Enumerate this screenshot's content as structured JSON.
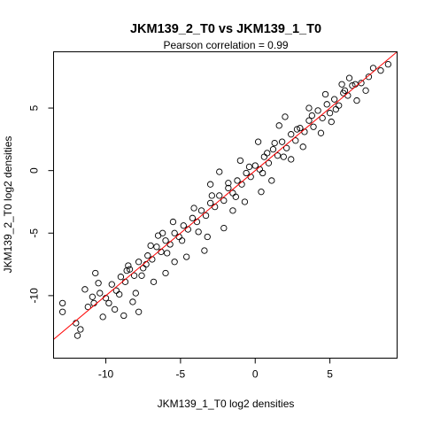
{
  "chart_data": {
    "type": "scatter",
    "title": "JKM139_2_T0 vs JKM139_1_T0",
    "subtitle": "Pearson correlation =  0.99",
    "xlabel": "JKM139_1_T0 log2 densities",
    "ylabel": "JKM139_2_T0 log2 densities",
    "xlim": [
      -13.5,
      9.5
    ],
    "ylim": [
      -15,
      9.5
    ],
    "xticks": [
      -10,
      -5,
      0,
      5
    ],
    "yticks": [
      -10,
      -5,
      0,
      5
    ],
    "xtick_labels": [
      "-10",
      "-5",
      "0",
      "5"
    ],
    "ytick_labels": [
      "-10",
      "-5",
      "0",
      "5"
    ],
    "grid": false,
    "legend": "none",
    "marker": "open-circle",
    "fit_line": {
      "slope": 1.0,
      "intercept": 0.0,
      "color": "#ff0000"
    },
    "point_color": "#000000",
    "series": [
      {
        "values": [
          [
            8.4,
            8.0
          ],
          [
            8.9,
            8.5
          ],
          [
            7.6,
            7.5
          ],
          [
            7.1,
            7.0
          ],
          [
            6.7,
            6.9
          ],
          [
            6.5,
            6.8
          ],
          [
            6.2,
            6.0
          ],
          [
            5.9,
            6.2
          ],
          [
            5.6,
            5.2
          ],
          [
            5.3,
            5.7
          ],
          [
            5.0,
            4.6
          ],
          [
            4.8,
            5.3
          ],
          [
            4.5,
            4.2
          ],
          [
            4.2,
            4.8
          ],
          [
            3.9,
            3.5
          ],
          [
            3.6,
            4.0
          ],
          [
            3.3,
            3.1
          ],
          [
            3.0,
            3.4
          ],
          [
            2.7,
            2.4
          ],
          [
            2.4,
            2.9
          ],
          [
            2.1,
            1.8
          ],
          [
            1.8,
            2.3
          ],
          [
            1.5,
            1.2
          ],
          [
            1.2,
            1.7
          ],
          [
            0.9,
            0.6
          ],
          [
            0.6,
            1.1
          ],
          [
            0.3,
            0.1
          ],
          [
            0.0,
            0.4
          ],
          [
            -0.3,
            -0.5
          ],
          [
            -0.6,
            -0.2
          ],
          [
            -0.9,
            -1.1
          ],
          [
            -1.2,
            -0.8
          ],
          [
            -1.5,
            -1.8
          ],
          [
            -1.8,
            -1.4
          ],
          [
            -2.1,
            -2.4
          ],
          [
            -2.4,
            -2.0
          ],
          [
            -2.7,
            -2.9
          ],
          [
            -3.0,
            -2.6
          ],
          [
            -3.3,
            -3.6
          ],
          [
            -3.6,
            -3.2
          ],
          [
            -3.9,
            -4.1
          ],
          [
            -4.2,
            -3.8
          ],
          [
            -4.5,
            -4.7
          ],
          [
            -4.8,
            -4.4
          ],
          [
            -5.1,
            -5.3
          ],
          [
            -5.4,
            -5.0
          ],
          [
            -5.7,
            -5.9
          ],
          [
            -6.0,
            -5.6
          ],
          [
            -6.3,
            -6.5
          ],
          [
            -6.6,
            -6.1
          ],
          [
            -6.9,
            -7.1
          ],
          [
            -7.2,
            -6.8
          ],
          [
            -7.5,
            -7.8
          ],
          [
            -7.8,
            -7.3
          ],
          [
            -8.1,
            -8.4
          ],
          [
            -8.4,
            -7.9
          ],
          [
            -8.7,
            -8.9
          ],
          [
            -9.0,
            -8.5
          ],
          [
            -9.3,
            -9.6
          ],
          [
            -9.6,
            -9.1
          ],
          [
            -10.0,
            -10.2
          ],
          [
            -10.4,
            -9.8
          ],
          [
            -10.8,
            -10.6
          ],
          [
            -11.2,
            -10.9
          ],
          [
            -12.9,
            -10.6
          ],
          [
            -12.9,
            -11.3
          ],
          [
            -12.0,
            -12.2
          ],
          [
            -11.7,
            -12.7
          ],
          [
            -11.9,
            -13.2
          ],
          [
            -10.5,
            -9.0
          ],
          [
            -11.4,
            -9.5
          ],
          [
            -10.7,
            -8.2
          ],
          [
            -10.2,
            -11.7
          ],
          [
            -9.4,
            -11.1
          ],
          [
            -8.8,
            -11.6
          ],
          [
            -7.8,
            -11.3
          ],
          [
            -8.0,
            -9.8
          ],
          [
            -8.5,
            -7.6
          ],
          [
            -8.2,
            -10.5
          ],
          [
            -6.8,
            -8.9
          ],
          [
            -6.0,
            -8.2
          ],
          [
            -7.0,
            -6.0
          ],
          [
            -6.5,
            -5.2
          ],
          [
            -5.4,
            -7.3
          ],
          [
            -4.6,
            -6.9
          ],
          [
            -3.4,
            -6.4
          ],
          [
            -5.5,
            -4.1
          ],
          [
            -4.1,
            -3.0
          ],
          [
            -3.2,
            -5.3
          ],
          [
            -2.1,
            -4.6
          ],
          [
            -3.0,
            -1.1
          ],
          [
            -2.4,
            -0.1
          ],
          [
            -1.5,
            -3.2
          ],
          [
            -0.7,
            -2.5
          ],
          [
            -1.0,
            0.8
          ],
          [
            0.4,
            -1.7
          ],
          [
            1.1,
            -0.8
          ],
          [
            0.2,
            2.3
          ],
          [
            1.6,
            3.6
          ],
          [
            2.4,
            0.9
          ],
          [
            3.2,
            1.9
          ],
          [
            2.0,
            4.3
          ],
          [
            3.6,
            5.0
          ],
          [
            4.4,
            3.0
          ],
          [
            5.1,
            3.9
          ],
          [
            4.7,
            6.1
          ],
          [
            5.8,
            6.9
          ],
          [
            6.8,
            5.6
          ],
          [
            6.3,
            7.4
          ],
          [
            7.4,
            6.4
          ],
          [
            7.9,
            8.2
          ],
          [
            -2.9,
            -2.0
          ],
          [
            -1.8,
            -1.0
          ],
          [
            -0.4,
            0.3
          ],
          [
            0.8,
            1.4
          ],
          [
            1.9,
            1.1
          ],
          [
            2.8,
            3.3
          ],
          [
            -3.8,
            -4.9
          ],
          [
            -4.9,
            -5.6
          ],
          [
            -5.9,
            -6.6
          ],
          [
            -7.3,
            -7.5
          ],
          [
            -8.6,
            -8.0
          ],
          [
            -9.8,
            -10.6
          ],
          [
            -10.9,
            -10.1
          ],
          [
            -1.3,
            -2.1
          ],
          [
            0.5,
            -0.2
          ],
          [
            1.3,
            2.2
          ],
          [
            3.8,
            4.4
          ],
          [
            5.4,
            4.9
          ],
          [
            6.0,
            6.4
          ],
          [
            -6.2,
            -5.0
          ],
          [
            -7.6,
            -8.4
          ],
          [
            -9.1,
            -9.9
          ]
        ]
      }
    ]
  }
}
